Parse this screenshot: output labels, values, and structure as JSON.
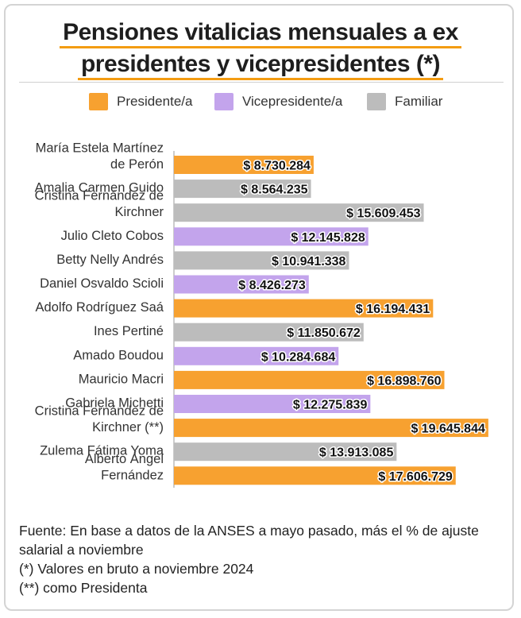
{
  "title_line1": "Pensiones vitalicias mensuales a ex",
  "title_line2": "presidentes y vicepresidentes (*)",
  "legend": [
    {
      "label": "Presidente/a",
      "color": "#f7a130"
    },
    {
      "label": "Vicepresidente/a",
      "color": "#c3a4ec"
    },
    {
      "label": "Familiar",
      "color": "#bcbcbc"
    }
  ],
  "chart_data": {
    "type": "bar",
    "orientation": "horizontal",
    "categories": [
      [
        "María Estela Martínez",
        "de Perón"
      ],
      [
        "Amalia Carmen Guido"
      ],
      [
        "Cristina Fernández de",
        "Kirchner"
      ],
      [
        "Julio Cleto Cobos"
      ],
      [
        "Betty Nelly Andrés"
      ],
      [
        "Daniel Osvaldo Scioli"
      ],
      [
        "Adolfo Rodríguez Saá"
      ],
      [
        "Ines Pertiné"
      ],
      [
        "Amado Boudou"
      ],
      [
        "Mauricio Macri"
      ],
      [
        "Gabriela Michetti"
      ],
      [
        "Cristina Fernández de",
        "Kirchner (**)"
      ],
      [
        "Zulema Fátima Yoma"
      ],
      [
        "Alberto Ángel",
        "Fernández"
      ]
    ],
    "values": [
      8730284,
      8564235,
      15609453,
      12145828,
      10941338,
      8426273,
      16194431,
      11850672,
      10284684,
      16898760,
      12275839,
      19645844,
      13913085,
      17606729
    ],
    "value_labels": [
      "$ 8.730.284",
      "$ 8.564.235",
      "$ 15.609.453",
      "$ 12.145.828",
      "$ 10.941.338",
      "$ 8.426.273",
      "$ 16.194.431",
      "$ 11.850.672",
      "$ 10.284.684",
      "$ 16.898.760",
      "$ 12.275.839",
      "$ 19.645.844",
      "$ 13.913.085",
      "$ 17.606.729"
    ],
    "groups": [
      "Presidente/a",
      "Familiar",
      "Familiar",
      "Vicepresidente/a",
      "Familiar",
      "Vicepresidente/a",
      "Presidente/a",
      "Familiar",
      "Vicepresidente/a",
      "Presidente/a",
      "Vicepresidente/a",
      "Presidente/a",
      "Familiar",
      "Presidente/a"
    ],
    "xlim": [
      0,
      20000000
    ],
    "grid": false,
    "legend_position": "top"
  },
  "notes": [
    "Fuente: En base a datos de la ANSES a mayo pasado, más el % de ajuste salarial a noviembre",
    "(*) Valores en bruto a noviembre 2024",
    "(**) como Presidenta"
  ]
}
